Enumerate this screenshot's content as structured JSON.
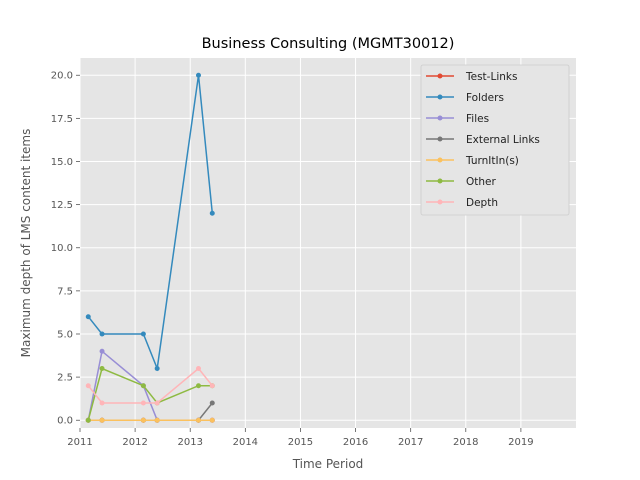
{
  "chart_data": {
    "type": "line",
    "title": "Business Consulting (MGMT30012)",
    "xlabel": "Time Period",
    "ylabel": "Maximum depth of LMS content items",
    "xlim": [
      2011,
      2020
    ],
    "ylim": [
      -0.45,
      21.0
    ],
    "xticks": [
      "2011",
      "2012",
      "2013",
      "2014",
      "2015",
      "2016",
      "2017",
      "2018",
      "2019"
    ],
    "yticks": [
      "0.0",
      "2.5",
      "5.0",
      "7.5",
      "10.0",
      "12.5",
      "15.0",
      "17.5",
      "20.0"
    ],
    "grid": true,
    "legend_position": "top-right",
    "x": [
      2011.15,
      2011.4,
      2012.15,
      2012.4,
      2013.15,
      2013.4
    ],
    "series": [
      {
        "name": "Test-Links",
        "color": "#E24A33",
        "values": [
          0,
          0,
          0,
          0,
          0,
          0
        ]
      },
      {
        "name": "Folders",
        "color": "#348ABD",
        "values": [
          6,
          5,
          5,
          3,
          20,
          12
        ]
      },
      {
        "name": "Files",
        "color": "#988ED5",
        "values": [
          0,
          4,
          2,
          0,
          0,
          0
        ]
      },
      {
        "name": "External Links",
        "color": "#777777",
        "values": [
          0,
          0,
          0,
          0,
          0,
          1
        ]
      },
      {
        "name": "TurnItIn(s)",
        "color": "#FBC15E",
        "values": [
          0,
          0,
          0,
          0,
          0,
          0
        ]
      },
      {
        "name": "Other",
        "color": "#8EBA42",
        "values": [
          0,
          3,
          2,
          1,
          2,
          2
        ]
      },
      {
        "name": "Depth",
        "color": "#FFB5B8",
        "values": [
          2,
          1,
          1,
          1,
          3,
          2
        ]
      }
    ]
  }
}
